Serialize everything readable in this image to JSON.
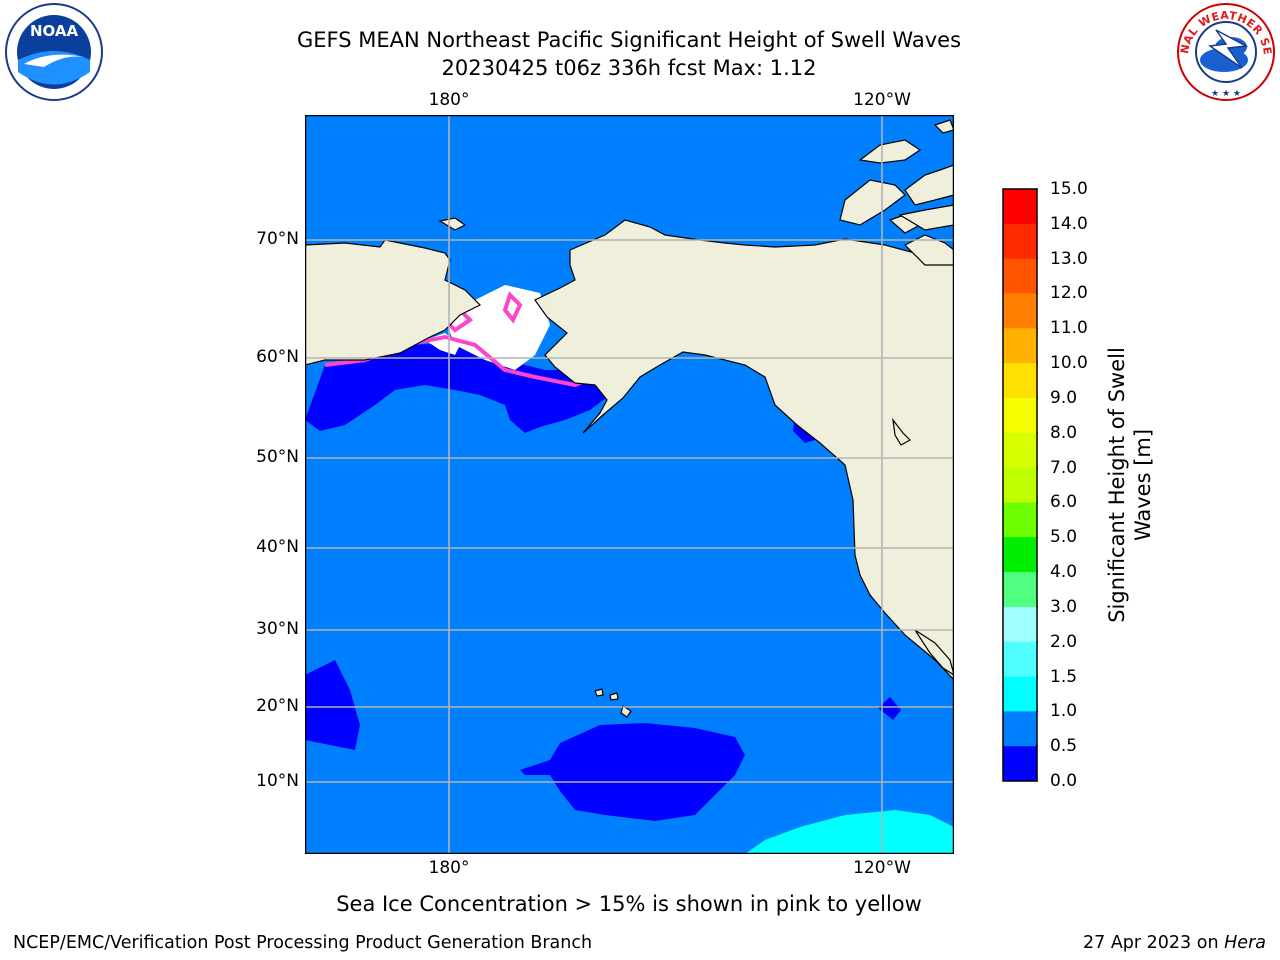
{
  "title": {
    "line1": "GEFS MEAN Northeast Pacific Significant Height of Swell Waves",
    "line2": "20230425 t06z 336h fcst   Max: 1.12"
  },
  "map": {
    "lon_ticks_top": [
      "180°",
      "120°W"
    ],
    "lon_ticks_bottom": [
      "180°",
      "120°W"
    ],
    "lat_ticks": [
      "70°N",
      "60°N",
      "50°N",
      "40°N",
      "30°N",
      "20°N",
      "10°N"
    ],
    "colors": {
      "ocean": "#0080ff",
      "low": "#0000ff",
      "land": "#efefdc",
      "coast": "#000000",
      "grid": "#b3b3b3",
      "ice": "#ff44cc",
      "swell_high": "#00ffff"
    }
  },
  "colorbar": {
    "label_line1": "Significant Height of Swell",
    "label_line2": "Waves [m]",
    "ticks": [
      "15.0",
      "14.0",
      "13.0",
      "12.0",
      "11.0",
      "10.0",
      "9.0",
      "8.0",
      "7.0",
      "6.0",
      "5.0",
      "4.0",
      "3.0",
      "2.0",
      "1.5",
      "1.0",
      "0.5",
      "0.0"
    ],
    "colors": [
      "#ff0000",
      "#ff2a00",
      "#ff5500",
      "#ff8000",
      "#ffb000",
      "#ffe000",
      "#f5ff00",
      "#d8ff00",
      "#c0ff00",
      "#70ff00",
      "#00ee00",
      "#50ff80",
      "#a0ffff",
      "#50ffff",
      "#00ffff",
      "#0080ff",
      "#0000ff"
    ]
  },
  "footer": {
    "note": "Sea Ice Concentration > 15% is shown in pink to yellow",
    "credit_left": "NCEP/EMC/Verification Post Processing Product Generation Branch",
    "credit_date": "27 Apr 2023 on",
    "credit_host": "Hera"
  },
  "logos": {
    "left": {
      "icon": "noaa-logo",
      "text": "NOAA"
    },
    "right": {
      "icon": "nws-logo",
      "text": "NATIONAL WEATHER SERVICE"
    }
  }
}
